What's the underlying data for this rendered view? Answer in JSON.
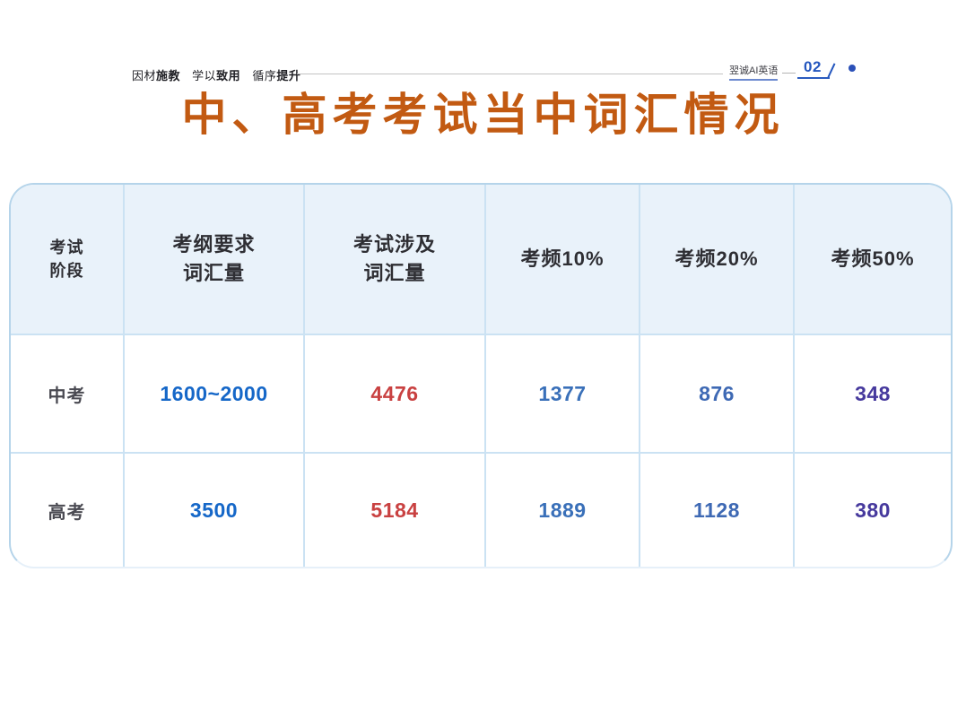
{
  "colors": {
    "title_orange": "#C25A12",
    "accent_blue": "#2456BE",
    "table_border": "#B5D4EA",
    "table_header_bg": "#E9F2FA",
    "value_blue": "#1567C8",
    "value_red": "#C94141",
    "value_medium_blue": "#3A70B9",
    "value_medium_blue_2": "#3E69B4",
    "value_purple": "#46399D"
  },
  "page_header": {
    "slogan": [
      {
        "regular": "因材",
        "bold": "施教"
      },
      {
        "regular": "学以",
        "bold": "致用"
      },
      {
        "regular": "循序",
        "bold": "提升"
      }
    ],
    "brand": "翌诚AI英语",
    "page_number": "02"
  },
  "title": "中、高考考试当中词汇情况",
  "table": {
    "headers": [
      {
        "line1": "考试",
        "line2": "阶段"
      },
      {
        "line1": "考纲要求",
        "line2": "词汇量"
      },
      {
        "line1": "考试涉及",
        "line2": "词汇量"
      },
      {
        "line1": "考频10%"
      },
      {
        "line1": "考频20%"
      },
      {
        "line1": "考频50%"
      }
    ],
    "rows": [
      {
        "label": "中考",
        "values": [
          "1600~2000",
          "4476",
          "1377",
          "876",
          "348"
        ]
      },
      {
        "label": "高考",
        "values": [
          "3500",
          "5184",
          "1889",
          "1128",
          "380"
        ]
      }
    ]
  }
}
